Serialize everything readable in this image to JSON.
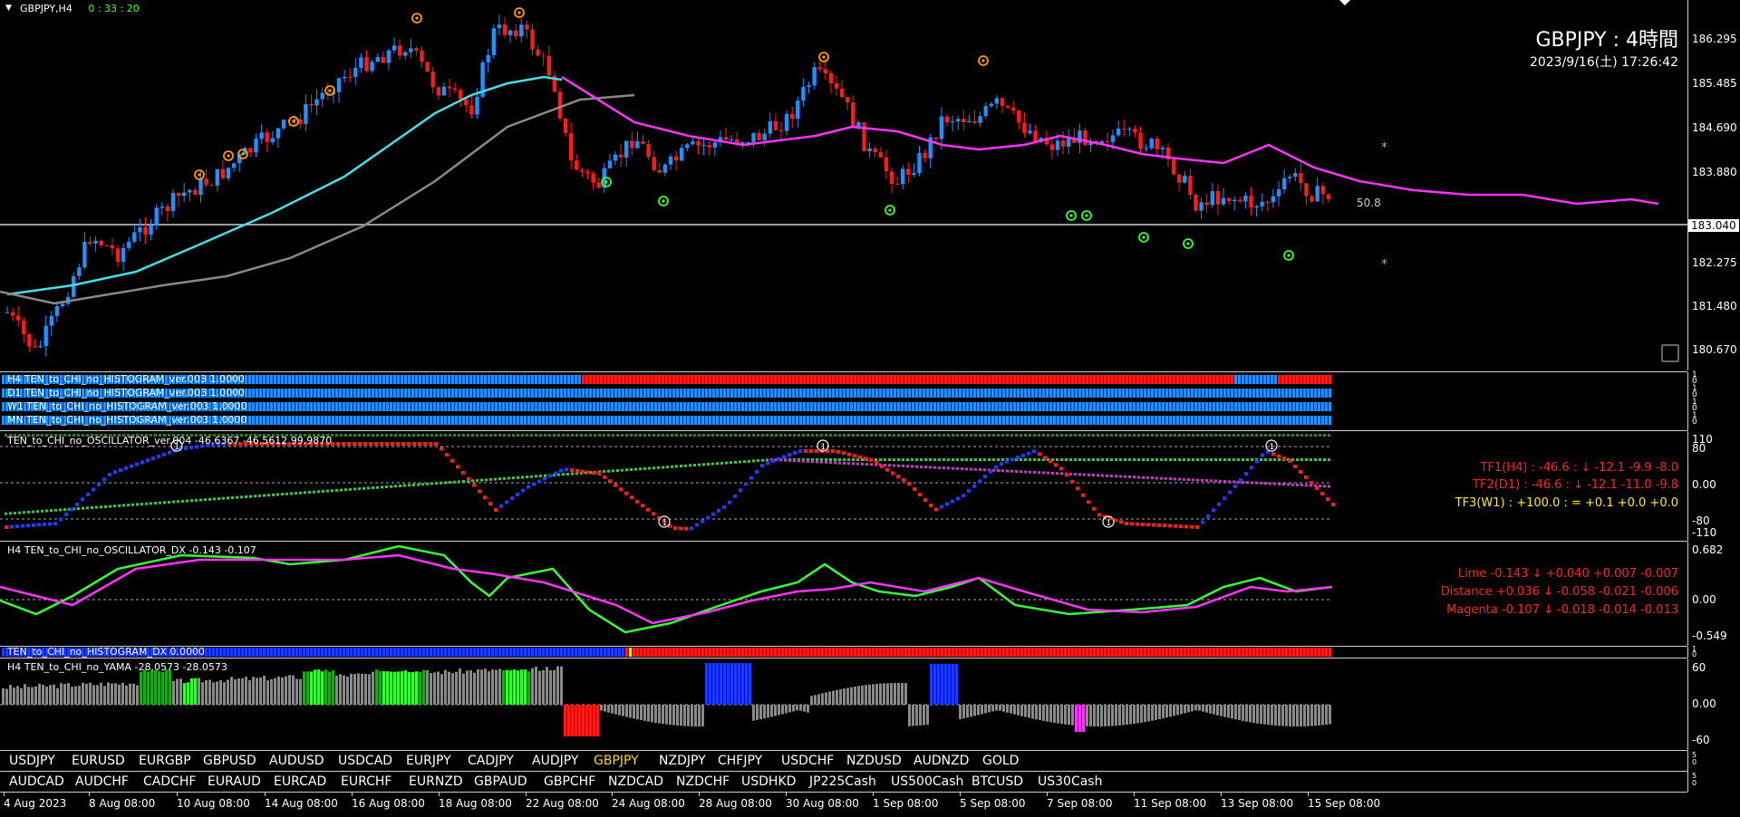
{
  "window": {
    "symbol_label": "GBPJPY,H4",
    "timer": "0 : 33 : 20"
  },
  "header_overlay": {
    "title": "GBPJPY : 4時間",
    "datetime": "2023/9/16(土) 17:26:42"
  },
  "main_scale": [
    "186.295",
    "185.485",
    "184.690",
    "183.880",
    "183.040",
    "182.275",
    "181.480",
    "180.670"
  ],
  "current_price": "183.040",
  "ref_value": "50.8",
  "histograms": [
    {
      "label": "H4 TEN_to_CHI_no_HISTOGRAM_ver.003 1.0000"
    },
    {
      "label": "D1 TEN_to_CHI_no_HISTOGRAM_ver.003 1.0000"
    },
    {
      "label": "W1 TEN_to_CHI_no_HISTOGRAM_ver.003 1.0000"
    },
    {
      "label": "MN TEN_to_CHI_no_HISTOGRAM_ver.003 1.0000"
    }
  ],
  "histogram_scale": [
    "1",
    "0",
    "1",
    "0",
    "1",
    "0",
    "1",
    "0"
  ],
  "oscillator": {
    "label": "TEN_to_CHI_no_OSCILLATOR_ver.004 -46.6367 -46.5612 99.9870",
    "scale": [
      "110",
      "80",
      "0.00",
      "-80",
      "-110"
    ],
    "tf1": "TF1(H4) : -46.6 : ↓ -12.1 -9.9 -8.0",
    "tf2": "TF2(D1) : -46.6 : ↓ -12.1 -11.0 -9.8",
    "tf3": "TF3(W1) : +100.0 : = +0.1 +0.0 +0.0"
  },
  "oscillator_dx": {
    "label": "H4 TEN_to_CHI_no_OSCILLATOR_DX -0.143 -0.107",
    "scale": [
      "0.682",
      "0.00",
      "-0.549"
    ],
    "lime": "Lime -0.143 ↓ +0.040 +0.007 -0.007",
    "distance": "Distance +0.036 ↓ -0.058 -0.021 -0.006",
    "magenta": "Magenta -0.107 ↓ -0.018 -0.014 -0.013"
  },
  "histogram_dx": {
    "label": "TEN_to_CHI_no_HISTOGRAM_DX 0.0000",
    "scale": [
      "1",
      "0"
    ]
  },
  "yama": {
    "label": "H4  TEN_to_CHI_no_YAMA -28.0573 -28.0573",
    "scale": [
      "60",
      "0.00",
      "-60"
    ]
  },
  "symbols_row1": [
    "USDJPY",
    "EURUSD",
    "EURGBP",
    "GBPUSD",
    "AUDUSD",
    "USDCAD",
    "EURJPY",
    "CADJPY",
    "AUDJPY",
    "GBPJPY",
    "NZDJPY",
    "CHFJPY",
    "USDCHF",
    "NZDUSD",
    "AUDNZD",
    "GOLD"
  ],
  "symbols_row2": [
    "AUDCAD",
    "AUDCHF",
    "CADCHF",
    "EURAUD",
    "EURCAD",
    "EURCHF",
    "EURNZD",
    "GBPAUD",
    "GBPCHF",
    "NZDCAD",
    "NZDCHF",
    "USDHKD",
    "JP225Cash",
    "US500Cash",
    "BTCUSD",
    "US30Cash"
  ],
  "active_symbol": "GBPJPY",
  "symbol_scale": [
    "5",
    "0",
    "5",
    "0"
  ],
  "time_axis": [
    "4 Aug 2023",
    "8 Aug 08:00",
    "10 Aug 08:00",
    "14 Aug 08:00",
    "16 Aug 08:00",
    "18 Aug 08:00",
    "22 Aug 08:00",
    "24 Aug 08:00",
    "28 Aug 08:00",
    "30 Aug 08:00",
    "1 Sep 08:00",
    "5 Sep 08:00",
    "7 Sep 08:00",
    "11 Sep 08:00",
    "13 Sep 08:00",
    "15 Sep 08:00"
  ],
  "colors": {
    "bull": "#1e90ff",
    "bear": "#ff1a1a",
    "sma_fast": "#40e0e8",
    "sma_slow": "#ff33ff",
    "lime": "#33ff33",
    "active_symbol": "#ffd700"
  }
}
